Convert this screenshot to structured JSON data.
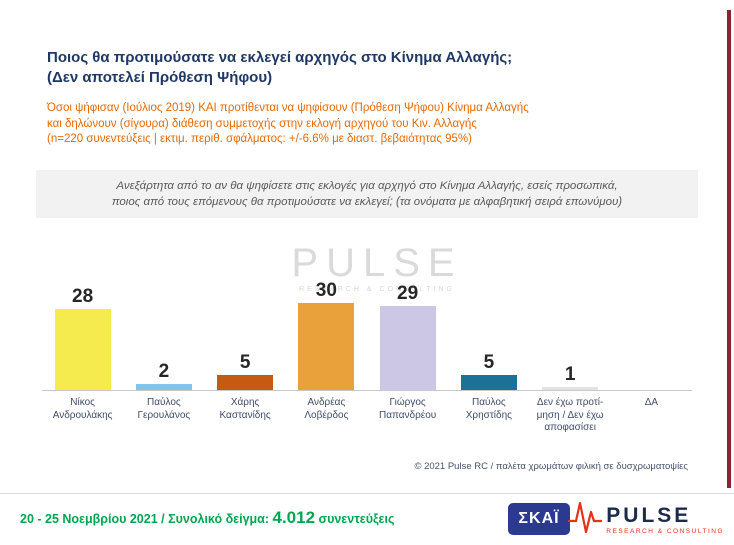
{
  "header": {
    "title_line1": "Ποιος θα προτιμούσατε να εκλεγεί αρχηγός στο Κίνημα Αλλαγής;",
    "title_line2": "(Δεν αποτελεί Πρόθεση Ψήφου)"
  },
  "subtitle": {
    "lines": [
      "Όσοι ψήφισαν (Ιούλιος 2019)  ΚΑΙ  προτίθενται να ψηφίσουν (Πρόθεση Ψήφου) Κίνημα Αλλαγής",
      "και δηλώνουν (σίγουρα) διάθεση συμμετοχής στην εκλογή αρχηγού του Κιν. Αλλαγής",
      "(n=220 συνεντεύξεις | εκτιμ. περιθ. σφάλματος: +/-6.6% με διαστ. βεβαιότητας 95%)"
    ]
  },
  "question": {
    "line1": "Ανεξάρτητα από το αν θα ψηφίσετε στις εκλογές για αρχηγό στο Κίνημα Αλλαγής, εσείς προσωπικά,",
    "line2": "ποιος από τους επόμενους θα προτιμούσατε να εκλεγεί; (τα ονόματα με αλφαβητική σειρά επωνύμου)"
  },
  "watermark": {
    "text": "PULSE",
    "subtext": "RESEARCH & CONSULTING"
  },
  "chart_data": {
    "type": "bar",
    "categories": [
      "Νίκος Ανδρουλάκης",
      "Παύλος Γερουλάνος",
      "Χάρης Καστανίδης",
      "Ανδρέας Λοβέρδος",
      "Γιώργος Παπανδρέου",
      "Παύλος Χρηστίδης",
      "Δεν έχω προτί-μηση / Δεν έχω αποφασίσει",
      "ΔΑ"
    ],
    "values": [
      28,
      2,
      5,
      30,
      29,
      5,
      1,
      0
    ],
    "value_labels": [
      "28",
      "2",
      "5",
      "30",
      "29",
      "5",
      "1",
      ""
    ],
    "colors": [
      "#F5EA4E",
      "#7FC5EE",
      "#C55A11",
      "#E9A13B",
      "#CCC7E4",
      "#1A7396",
      "#E3E3E3",
      "#E3E3E3"
    ],
    "title": "Ποιος θα προτιμούσατε να εκλεγεί αρχηγός στο Κίνημα Αλλαγής;",
    "xlabel": "",
    "ylabel": "",
    "ylim": [
      0,
      34
    ],
    "grid": false,
    "legend": "none"
  },
  "footnote": "© 2021 Pulse RC   /   παλέτα χρωμάτων φιλική σε δυσχρωματοψίες",
  "footer": {
    "period": "20 - 25  Νοεμβρίου 2021",
    "separator": "/",
    "sample_label": "Συνολικό δείγμα:",
    "sample_value": "4.012",
    "sample_suffix": "συνεντεύξεις"
  },
  "logos": {
    "skai_text": "ΣΚΑΪ",
    "pulse_text": "PULSE",
    "pulse_subtext": "RESEARCH & CONSULTING"
  },
  "colors": {
    "title_navy": "#1F3864",
    "subtitle_orange": "#E26B0A",
    "footer_green": "#00A551",
    "stripe_maroon": "#8B2332",
    "skai_blue": "#2B3990",
    "pulse_red": "#E5311A"
  }
}
